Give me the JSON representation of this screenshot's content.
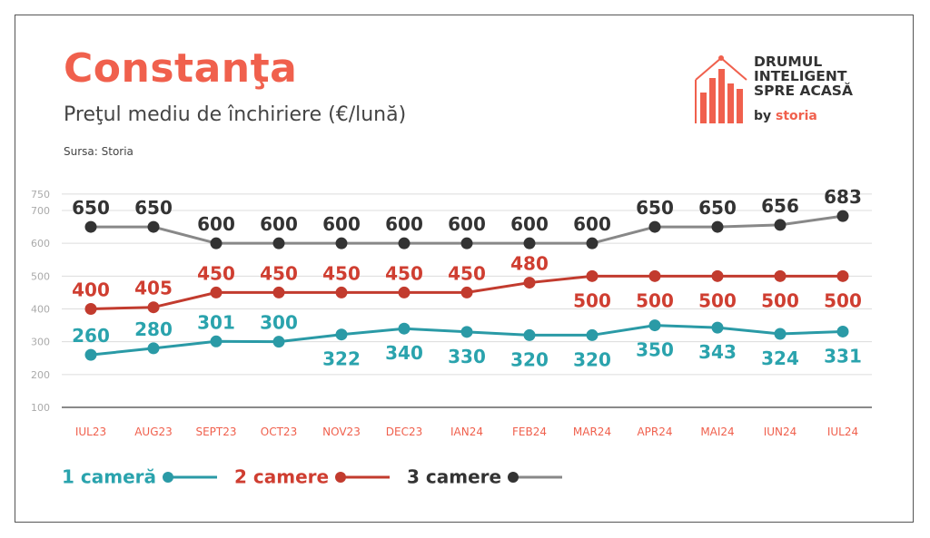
{
  "title": "Constanţa",
  "subtitle": "Preţul mediu de închiriere (€/lună)",
  "source": "Sursa: Storia",
  "brand": {
    "line1": "DRUMUL",
    "line2": "INTELIGENT",
    "line3": "SPRE ACASĂ",
    "by": "by",
    "storia": "storia",
    "logo_icon": "house-bar-chart-icon",
    "accent": "#f0604d"
  },
  "chart_data": {
    "type": "line",
    "categories": [
      "IUL23",
      "AUG23",
      "SEPT23",
      "OCT23",
      "NOV23",
      "DEC23",
      "IAN24",
      "FEB24",
      "MAR24",
      "APR24",
      "MAI24",
      "IUN24",
      "IUL24"
    ],
    "y_ticks": [
      100,
      200,
      300,
      400,
      500,
      600,
      700,
      750
    ],
    "ylim": [
      100,
      750
    ],
    "grid": true,
    "series": [
      {
        "name": "1 cameră",
        "color": "#2a9aa6",
        "label_color": "#2aa3ad",
        "values": [
          260,
          280,
          301,
          300,
          322,
          340,
          330,
          320,
          320,
          350,
          343,
          324,
          331
        ],
        "labels": [
          "260",
          "280",
          "301",
          "300",
          "322",
          "340",
          "330",
          "320",
          "320",
          "350",
          "343",
          "324",
          "331"
        ]
      },
      {
        "name": "2 camere",
        "color": "#c23b2e",
        "label_color": "#cf3e31",
        "values": [
          400,
          405,
          450,
          450,
          450,
          450,
          450,
          480,
          500,
          500,
          500,
          500,
          500
        ],
        "labels": [
          "400",
          "405",
          "450",
          "450",
          "450",
          "450",
          "450",
          "480",
          "500",
          "500",
          "500",
          "500",
          "500"
        ]
      },
      {
        "name": "3 camere",
        "color": "#888888",
        "label_color": "#333333",
        "values": [
          650,
          650,
          600,
          600,
          600,
          600,
          600,
          600,
          600,
          650,
          650,
          656,
          683
        ],
        "labels": [
          "650",
          "650",
          "600",
          "600",
          "600",
          "600",
          "600",
          "600",
          "600",
          "650",
          "650",
          "656",
          "683"
        ]
      }
    ],
    "legend_position": "bottom-left"
  }
}
